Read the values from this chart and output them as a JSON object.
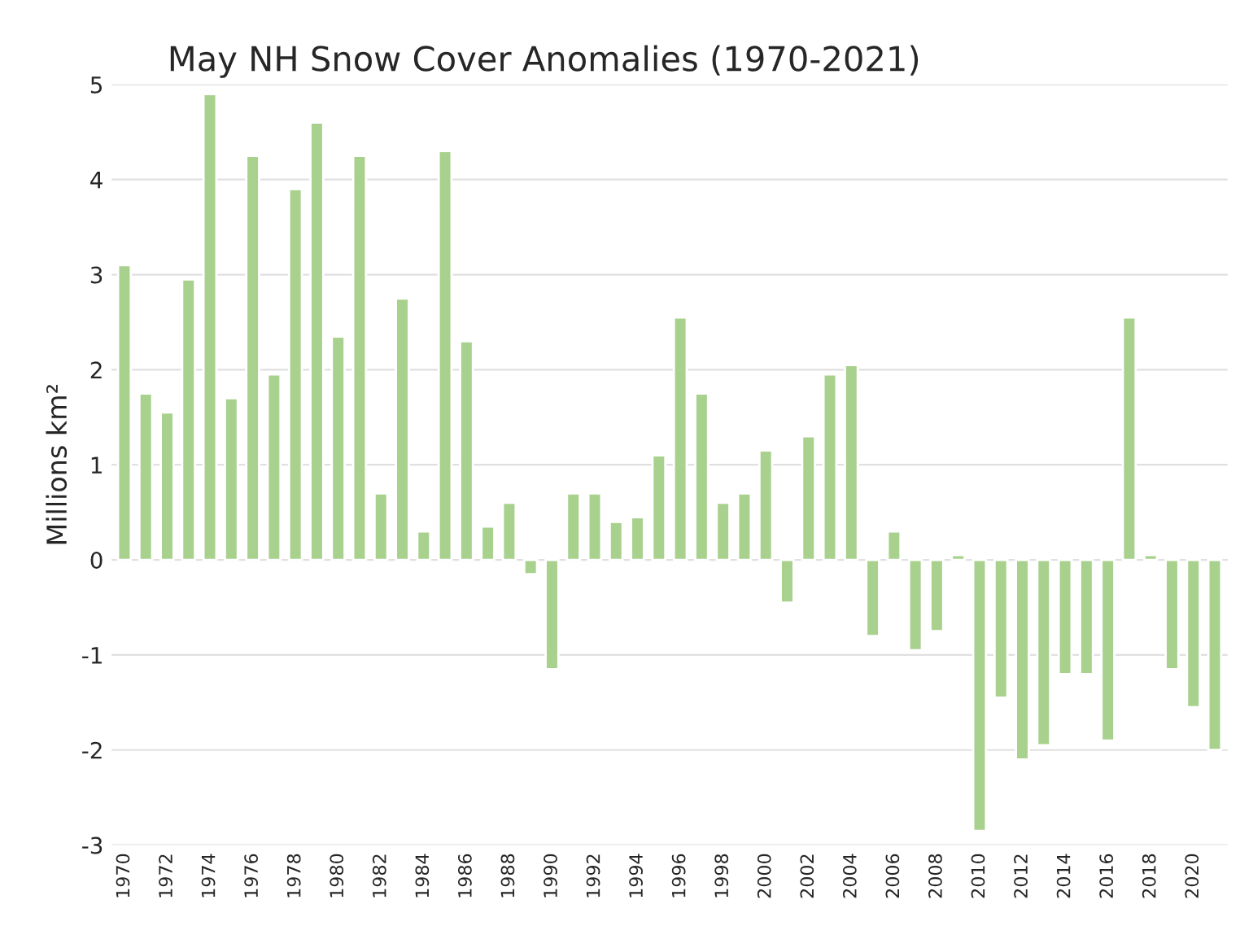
{
  "chart_data": {
    "type": "bar",
    "title": "May NH Snow Cover Anomalies (1970-2021)",
    "ylabel": "Millions km²",
    "categories": [
      "1970",
      null,
      "1972",
      null,
      "1974",
      null,
      "1976",
      null,
      "1978",
      null,
      "1980",
      null,
      "1982",
      null,
      "1984",
      null,
      "1986",
      null,
      "1988",
      null,
      "1990",
      null,
      "1992",
      null,
      "1994",
      null,
      "1996",
      null,
      "1998",
      null,
      "2000",
      null,
      "2002",
      null,
      "2004",
      null,
      "2006",
      null,
      "2008",
      null,
      "2010",
      null,
      "2012",
      null,
      "2014",
      null,
      "2016",
      null,
      "2018",
      null,
      "2020",
      null
    ],
    "values": [
      3.1,
      1.75,
      1.55,
      2.95,
      4.9,
      1.7,
      4.25,
      1.95,
      3.9,
      4.6,
      2.35,
      4.25,
      0.7,
      2.75,
      0.3,
      4.3,
      2.3,
      0.35,
      0.6,
      -0.15,
      -1.15,
      0.7,
      0.7,
      0.4,
      0.45,
      1.1,
      2.55,
      1.75,
      0.6,
      0.7,
      1.15,
      -0.45,
      1.3,
      1.95,
      2.05,
      -0.8,
      0.3,
      -0.95,
      -0.75,
      0.05,
      -2.85,
      -1.45,
      -2.1,
      -1.95,
      -1.2,
      -1.2,
      -1.9,
      2.55,
      0.05,
      -1.15,
      -1.55,
      -2.0
    ],
    "color": "#a9d18e",
    "ylim": [
      -3,
      5
    ],
    "yticks": [
      -3,
      -2,
      -1,
      0,
      1,
      2,
      3,
      4,
      5
    ],
    "grid": "y"
  }
}
